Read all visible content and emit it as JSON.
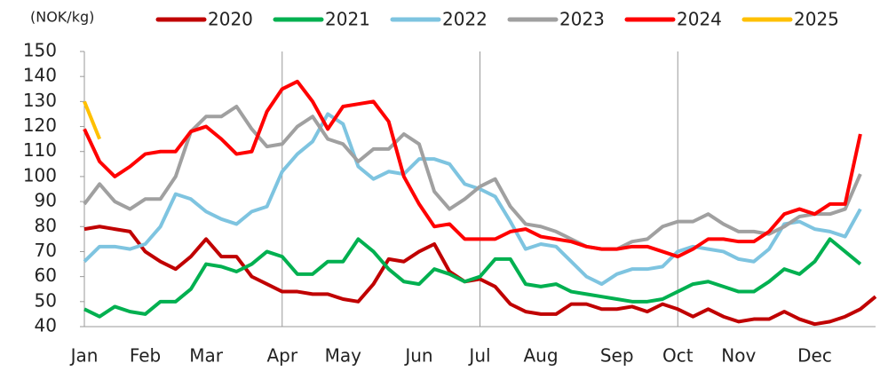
{
  "chart_data": {
    "type": "line",
    "y_axis_label": "(NOK/kg)",
    "x": [
      1,
      2,
      3,
      4,
      5,
      6,
      7,
      8,
      9,
      10,
      11,
      12,
      13,
      14,
      15,
      16,
      17,
      18,
      19,
      20,
      21,
      22,
      23,
      24,
      25,
      26,
      27,
      28,
      29,
      30,
      31,
      32,
      33,
      34,
      35,
      36,
      37,
      38,
      39,
      40,
      41,
      42,
      43,
      44,
      45,
      46,
      47,
      48,
      49,
      50,
      51,
      52,
      53
    ],
    "xlim": [
      1,
      53
    ],
    "xticks": [
      {
        "value": 1,
        "label": "Jan"
      },
      {
        "value": 5,
        "label": "Feb"
      },
      {
        "value": 9,
        "label": "Mar"
      },
      {
        "value": 14,
        "label": "Apr"
      },
      {
        "value": 18,
        "label": "May"
      },
      {
        "value": 23,
        "label": "Jun"
      },
      {
        "value": 27,
        "label": "Jul"
      },
      {
        "value": 31,
        "label": "Aug"
      },
      {
        "value": 36,
        "label": "Sep"
      },
      {
        "value": 40,
        "label": "Oct"
      },
      {
        "value": 44,
        "label": "Nov"
      },
      {
        "value": 49,
        "label": "Dec"
      }
    ],
    "vertical_lines": [
      14,
      27,
      40
    ],
    "ylim": [
      40,
      150
    ],
    "yticks": [
      40,
      50,
      60,
      70,
      80,
      90,
      100,
      110,
      120,
      130,
      140,
      150
    ],
    "series": [
      {
        "name": "2020",
        "color": "#c00000",
        "values": [
          79,
          80,
          79,
          78,
          70,
          66,
          63,
          68,
          75,
          68,
          68,
          60,
          57,
          54,
          54,
          53,
          53,
          51,
          50,
          57,
          67,
          66,
          70,
          73,
          62,
          58,
          59,
          56,
          49,
          46,
          45,
          45,
          49,
          49,
          47,
          47,
          48,
          46,
          49,
          47,
          44,
          47,
          44,
          42,
          43,
          43,
          46,
          43,
          41,
          42,
          44,
          47,
          52
        ]
      },
      {
        "name": "2021",
        "color": "#00b050",
        "values": [
          47,
          44,
          48,
          46,
          45,
          50,
          50,
          55,
          65,
          64,
          62,
          65,
          70,
          68,
          61,
          61,
          66,
          66,
          75,
          70,
          63,
          58,
          57,
          63,
          61,
          58,
          60,
          67,
          67,
          57,
          56,
          57,
          54,
          53,
          52,
          51,
          50,
          50,
          51,
          54,
          57,
          58,
          56,
          54,
          54,
          58,
          63,
          61,
          66,
          75,
          70,
          65,
          null
        ]
      },
      {
        "name": "2022",
        "color": "#7ec4e0",
        "values": [
          66,
          72,
          72,
          71,
          73,
          80,
          93,
          91,
          86,
          83,
          81,
          86,
          88,
          102,
          109,
          114,
          125,
          121,
          104,
          99,
          102,
          101,
          107,
          107,
          105,
          97,
          95,
          92,
          82,
          71,
          73,
          72,
          66,
          60,
          57,
          61,
          63,
          63,
          64,
          70,
          72,
          71,
          70,
          67,
          66,
          71,
          81,
          82,
          79,
          78,
          76,
          87,
          null
        ]
      },
      {
        "name": "2023",
        "color": "#a0a0a0",
        "values": [
          89,
          97,
          90,
          87,
          91,
          91,
          100,
          118,
          124,
          124,
          128,
          119,
          112,
          113,
          120,
          124,
          115,
          113,
          106,
          111,
          111,
          117,
          113,
          94,
          87,
          91,
          96,
          99,
          88,
          81,
          80,
          78,
          75,
          72,
          71,
          71,
          74,
          75,
          80,
          82,
          82,
          85,
          81,
          78,
          78,
          77,
          80,
          84,
          85,
          85,
          87,
          101,
          null
        ]
      },
      {
        "name": "2024",
        "color": "#ff0000",
        "values": [
          119,
          106,
          100,
          104,
          109,
          110,
          110,
          118,
          120,
          115,
          109,
          110,
          126,
          135,
          138,
          130,
          119,
          128,
          129,
          130,
          122,
          100,
          89,
          80,
          81,
          75,
          75,
          75,
          78,
          79,
          76,
          75,
          74,
          72,
          71,
          71,
          72,
          72,
          70,
          68,
          71,
          75,
          75,
          74,
          74,
          78,
          85,
          87,
          85,
          89,
          89,
          117,
          null
        ]
      },
      {
        "name": "2025",
        "color": "#ffc000",
        "values": [
          130,
          115,
          null,
          null,
          null,
          null,
          null,
          null,
          null,
          null,
          null,
          null,
          null,
          null,
          null,
          null,
          null,
          null,
          null,
          null,
          null,
          null,
          null,
          null,
          null,
          null,
          null,
          null,
          null,
          null,
          null,
          null,
          null,
          null,
          null,
          null,
          null,
          null,
          null,
          null,
          null,
          null,
          null,
          null,
          null,
          null,
          null,
          null,
          null,
          null,
          null,
          null,
          null
        ]
      }
    ]
  }
}
